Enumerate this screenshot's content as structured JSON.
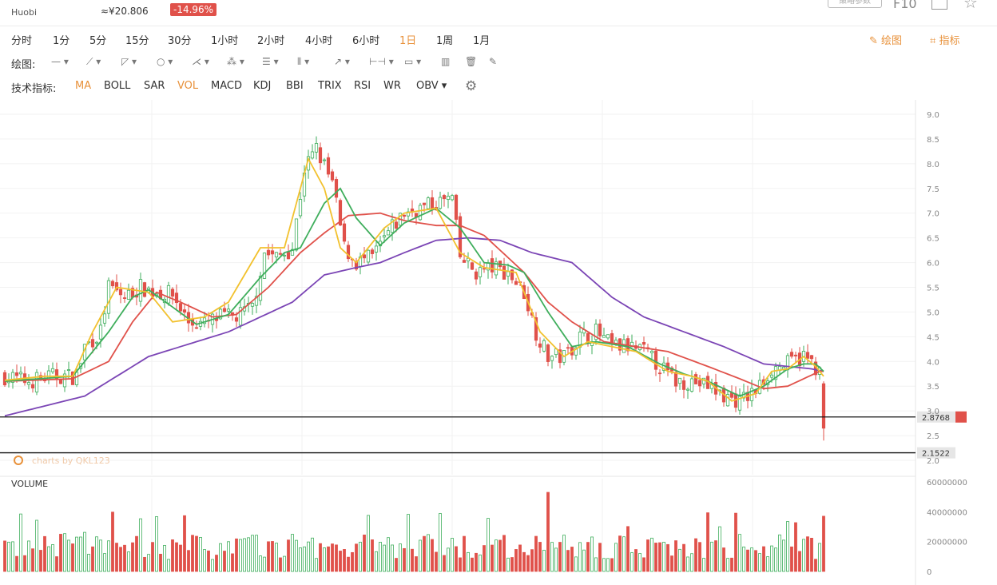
{
  "header": {
    "exchange": "Huobi",
    "price": "≈¥20.806",
    "change": "-14.96%",
    "param_button": "策略参数",
    "f10_label": "F10"
  },
  "periods": [
    "分时",
    "1分",
    "5分",
    "15分",
    "30分",
    "1小时",
    "2小时",
    "4小时",
    "6小时",
    "1日",
    "1周",
    "1月"
  ],
  "active_period": "1日",
  "actions": {
    "draw": "绘图",
    "indicators": "指标"
  },
  "draw_toolbar": {
    "label": "绘图:"
  },
  "indicator_bar": {
    "label": "技术指标:",
    "items": [
      "MA",
      "BOLL",
      "SAR",
      "VOL",
      "MACD",
      "KDJ",
      "BBI",
      "TRIX",
      "RSI",
      "WR",
      "OBV"
    ],
    "active": [
      "MA",
      "VOL"
    ]
  },
  "colors": {
    "up": "#e0514a",
    "down": "#3fae5c",
    "ma5": "#f2c12e",
    "ma10": "#3fae5c",
    "ma20": "#e0514a",
    "ma60": "#7b45b5",
    "accent": "#e8913a"
  },
  "chart_data": {
    "type": "candlestick",
    "price_axis": {
      "ticks": [
        "9.0",
        "8.5",
        "8.0",
        "7.5",
        "7.0",
        "6.5",
        "6.0",
        "5.5",
        "5.0",
        "4.5",
        "4.0",
        "3.5",
        "3.0",
        "2.5",
        "2.0"
      ],
      "range": [
        2.0,
        9.0
      ]
    },
    "horizontal_lines": [
      {
        "value": 2.8768,
        "label": "2.8768"
      },
      {
        "value": 2.1522,
        "label": "2.1522"
      }
    ],
    "watermark": "charts by QKL123",
    "volume_panel": {
      "title": "VOLUME",
      "ticks": [
        "60000000",
        "40000000",
        "20000000",
        "0"
      ],
      "range": [
        0,
        60000000
      ]
    },
    "ma_anchors": {
      "ma5": [
        [
          0,
          3.62
        ],
        [
          10,
          3.7
        ],
        [
          17,
          3.7
        ],
        [
          22,
          4.6
        ],
        [
          28,
          5.5
        ],
        [
          36,
          5.4
        ],
        [
          42,
          4.8
        ],
        [
          50,
          4.9
        ],
        [
          56,
          5.2
        ],
        [
          64,
          6.3
        ],
        [
          70,
          6.3
        ],
        [
          76,
          8.1
        ],
        [
          80,
          7.5
        ],
        [
          84,
          6.3
        ],
        [
          88,
          6.0
        ],
        [
          95,
          6.7
        ],
        [
          100,
          7.0
        ],
        [
          108,
          7.1
        ],
        [
          114,
          6.2
        ],
        [
          120,
          5.9
        ],
        [
          128,
          5.8
        ],
        [
          134,
          4.6
        ],
        [
          140,
          4.1
        ],
        [
          146,
          4.4
        ],
        [
          152,
          4.3
        ],
        [
          158,
          4.2
        ],
        [
          166,
          3.8
        ],
        [
          172,
          3.7
        ],
        [
          176,
          3.6
        ],
        [
          182,
          3.2
        ],
        [
          188,
          3.35
        ],
        [
          192,
          3.8
        ],
        [
          196,
          3.85
        ],
        [
          200,
          4.1
        ],
        [
          203,
          3.9
        ],
        [
          205,
          3.7
        ]
      ],
      "ma10": [
        [
          0,
          3.6
        ],
        [
          17,
          3.7
        ],
        [
          26,
          4.6
        ],
        [
          32,
          5.3
        ],
        [
          36,
          5.45
        ],
        [
          42,
          5.1
        ],
        [
          48,
          4.75
        ],
        [
          56,
          4.95
        ],
        [
          64,
          5.7
        ],
        [
          70,
          6.2
        ],
        [
          74,
          6.3
        ],
        [
          80,
          7.2
        ],
        [
          84,
          7.5
        ],
        [
          88,
          6.9
        ],
        [
          94,
          6.35
        ],
        [
          100,
          6.8
        ],
        [
          108,
          7.1
        ],
        [
          114,
          6.7
        ],
        [
          120,
          6.0
        ],
        [
          126,
          5.95
        ],
        [
          130,
          5.8
        ],
        [
          136,
          5.0
        ],
        [
          142,
          4.3
        ],
        [
          148,
          4.4
        ],
        [
          156,
          4.3
        ],
        [
          164,
          3.95
        ],
        [
          170,
          3.75
        ],
        [
          176,
          3.6
        ],
        [
          184,
          3.3
        ],
        [
          190,
          3.5
        ],
        [
          196,
          3.85
        ],
        [
          200,
          3.95
        ],
        [
          203,
          3.95
        ],
        [
          205,
          3.8
        ]
      ],
      "ma20": [
        [
          0,
          3.6
        ],
        [
          17,
          3.65
        ],
        [
          26,
          4.0
        ],
        [
          32,
          4.8
        ],
        [
          38,
          5.4
        ],
        [
          44,
          5.2
        ],
        [
          52,
          4.9
        ],
        [
          58,
          4.95
        ],
        [
          66,
          5.5
        ],
        [
          74,
          6.2
        ],
        [
          80,
          6.6
        ],
        [
          86,
          6.95
        ],
        [
          94,
          7.0
        ],
        [
          100,
          6.85
        ],
        [
          108,
          6.75
        ],
        [
          114,
          6.75
        ],
        [
          120,
          6.55
        ],
        [
          126,
          6.1
        ],
        [
          130,
          5.8
        ],
        [
          136,
          5.2
        ],
        [
          142,
          4.8
        ],
        [
          150,
          4.4
        ],
        [
          158,
          4.3
        ],
        [
          166,
          4.2
        ],
        [
          176,
          3.9
        ],
        [
          184,
          3.65
        ],
        [
          190,
          3.45
        ],
        [
          196,
          3.5
        ],
        [
          200,
          3.65
        ],
        [
          204,
          3.8
        ],
        [
          205,
          3.8
        ]
      ],
      "ma60": [
        [
          0,
          2.9
        ],
        [
          10,
          3.1
        ],
        [
          20,
          3.3
        ],
        [
          28,
          3.7
        ],
        [
          36,
          4.1
        ],
        [
          44,
          4.3
        ],
        [
          56,
          4.6
        ],
        [
          64,
          4.9
        ],
        [
          72,
          5.2
        ],
        [
          80,
          5.75
        ],
        [
          88,
          5.9
        ],
        [
          94,
          6.0
        ],
        [
          100,
          6.2
        ],
        [
          108,
          6.45
        ],
        [
          116,
          6.5
        ],
        [
          124,
          6.45
        ],
        [
          132,
          6.2
        ],
        [
          142,
          6.0
        ],
        [
          152,
          5.3
        ],
        [
          160,
          4.9
        ],
        [
          170,
          4.6
        ],
        [
          180,
          4.3
        ],
        [
          190,
          3.95
        ],
        [
          196,
          3.9
        ],
        [
          202,
          3.85
        ],
        [
          205,
          3.8
        ]
      ]
    },
    "close_anchors": [
      [
        0,
        3.7
      ],
      [
        6,
        3.6
      ],
      [
        12,
        3.7
      ],
      [
        18,
        3.7
      ],
      [
        20,
        4.3
      ],
      [
        24,
        4.6
      ],
      [
        26,
        5.5
      ],
      [
        30,
        5.3
      ],
      [
        34,
        5.5
      ],
      [
        38,
        5.4
      ],
      [
        42,
        5.35
      ],
      [
        46,
        4.8
      ],
      [
        50,
        4.75
      ],
      [
        54,
        4.9
      ],
      [
        58,
        4.9
      ],
      [
        62,
        5.1
      ],
      [
        65,
        6.2
      ],
      [
        68,
        6.1
      ],
      [
        72,
        6.3
      ],
      [
        75,
        7.9
      ],
      [
        78,
        8.3
      ],
      [
        82,
        7.6
      ],
      [
        85,
        6.3
      ],
      [
        88,
        6.0
      ],
      [
        92,
        6.1
      ],
      [
        96,
        6.6
      ],
      [
        100,
        7.0
      ],
      [
        104,
        7.1
      ],
      [
        108,
        7.2
      ],
      [
        112,
        7.3
      ],
      [
        114,
        6.1
      ],
      [
        118,
        5.8
      ],
      [
        122,
        5.9
      ],
      [
        126,
        5.8
      ],
      [
        130,
        5.4
      ],
      [
        133,
        4.6
      ],
      [
        136,
        4.1
      ],
      [
        140,
        4.1
      ],
      [
        144,
        4.5
      ],
      [
        148,
        4.6
      ],
      [
        152,
        4.3
      ],
      [
        156,
        4.3
      ],
      [
        160,
        4.2
      ],
      [
        164,
        3.9
      ],
      [
        168,
        3.6
      ],
      [
        172,
        3.6
      ],
      [
        176,
        3.5
      ],
      [
        180,
        3.3
      ],
      [
        184,
        3.2
      ],
      [
        188,
        3.4
      ],
      [
        192,
        3.85
      ],
      [
        196,
        3.95
      ],
      [
        200,
        4.1
      ],
      [
        203,
        3.9
      ],
      [
        204,
        3.75
      ],
      [
        205,
        2.65
      ]
    ]
  }
}
